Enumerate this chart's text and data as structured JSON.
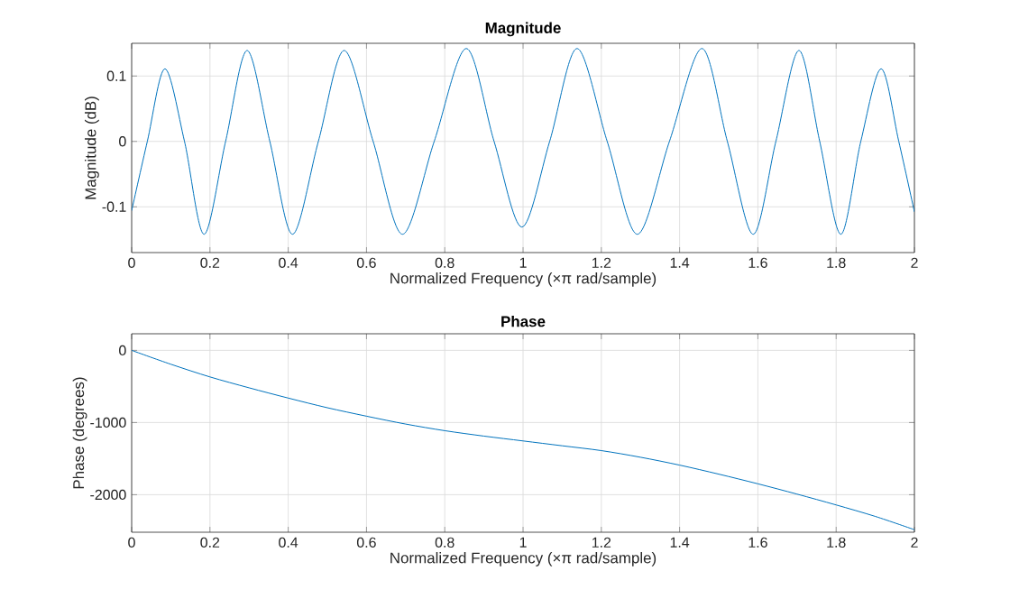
{
  "chart_data": [
    {
      "type": "line",
      "title": "Magnitude",
      "xlabel": "Normalized Frequency  (×π rad/sample)",
      "ylabel": "Magnitude (dB)",
      "x": [
        0,
        0.04,
        0.085,
        0.135,
        0.185,
        0.24,
        0.295,
        0.353,
        0.411,
        0.477,
        0.543,
        0.617,
        0.692,
        0.773,
        0.855,
        0.926,
        0.997,
        1.068,
        1.138,
        1.215,
        1.292,
        1.374,
        1.457,
        1.522,
        1.588,
        1.646,
        1.705,
        1.758,
        1.812,
        1.863,
        1.915,
        1.96,
        2
      ],
      "series": [
        {
          "color": "#0072bd",
          "values": [
            -0.106,
            0,
            0.111,
            0,
            -0.142,
            0,
            0.139,
            0,
            -0.142,
            0,
            0.139,
            0,
            -0.142,
            0,
            0.142,
            0,
            -0.131,
            0,
            0.142,
            0,
            -0.142,
            0,
            0.142,
            0,
            -0.142,
            0,
            0.139,
            0,
            -0.142,
            0,
            0.111,
            0,
            -0.108
          ]
        }
      ],
      "xlim": [
        0,
        2
      ],
      "ylim": [
        -0.17,
        0.15
      ],
      "xticks": [
        0,
        0.2,
        0.4,
        0.6,
        0.8,
        1,
        1.2,
        1.4,
        1.6,
        1.8,
        2
      ],
      "yticks": [
        -0.1,
        0,
        0.1
      ],
      "grid": true
    },
    {
      "type": "line",
      "title": "Phase",
      "xlabel": "Normalized Frequency  (×π rad/sample)",
      "ylabel": "Phase (degrees)",
      "x": [
        0,
        0.1,
        0.2,
        0.3,
        0.4,
        0.5,
        0.6,
        0.7,
        0.8,
        0.9,
        1,
        1.1,
        1.2,
        1.3,
        1.4,
        1.5,
        1.6,
        1.7,
        1.8,
        1.9,
        2
      ],
      "series": [
        {
          "color": "#0072bd",
          "values": [
            0,
            -192,
            -368,
            -519,
            -661,
            -795,
            -912,
            -1021,
            -1113,
            -1188,
            -1255,
            -1322,
            -1389,
            -1481,
            -1590,
            -1715,
            -1849,
            -1992,
            -2142,
            -2301,
            -2485
          ]
        }
      ],
      "xlim": [
        0,
        2
      ],
      "ylim": [
        -2520,
        230
      ],
      "xticks": [
        0,
        0.2,
        0.4,
        0.6,
        0.8,
        1,
        1.2,
        1.4,
        1.6,
        1.8,
        2
      ],
      "yticks": [
        -2000,
        -1000,
        0
      ],
      "grid": true
    }
  ]
}
